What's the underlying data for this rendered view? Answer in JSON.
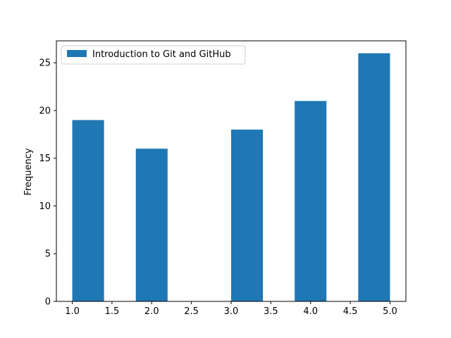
{
  "chart_data": {
    "type": "bar",
    "title": "",
    "xlabel": "",
    "ylabel": "Frequency",
    "xlim": [
      0.8,
      5.2
    ],
    "ylim": [
      0,
      27.3
    ],
    "xticks": [
      "1.0",
      "1.5",
      "2.0",
      "2.5",
      "3.0",
      "3.5",
      "4.0",
      "4.5",
      "5.0"
    ],
    "yticks": [
      "0",
      "5",
      "10",
      "15",
      "20",
      "25"
    ],
    "legend_position": "upper-left",
    "grid": false,
    "bar_color": "#1f77b4",
    "series": [
      {
        "name": "Introduction to Git and GitHub",
        "bins": [
          {
            "start": 1.0,
            "end": 1.4,
            "value": 19
          },
          {
            "start": 1.4,
            "end": 1.8,
            "value": 0
          },
          {
            "start": 1.8,
            "end": 2.2,
            "value": 16
          },
          {
            "start": 2.2,
            "end": 2.6,
            "value": 0
          },
          {
            "start": 2.6,
            "end": 3.0,
            "value": 0
          },
          {
            "start": 3.0,
            "end": 3.4,
            "value": 18
          },
          {
            "start": 3.4,
            "end": 3.8,
            "value": 0
          },
          {
            "start": 3.8,
            "end": 4.2,
            "value": 21
          },
          {
            "start": 4.2,
            "end": 4.6,
            "value": 0
          },
          {
            "start": 4.6,
            "end": 5.0,
            "value": 26
          }
        ]
      }
    ]
  }
}
